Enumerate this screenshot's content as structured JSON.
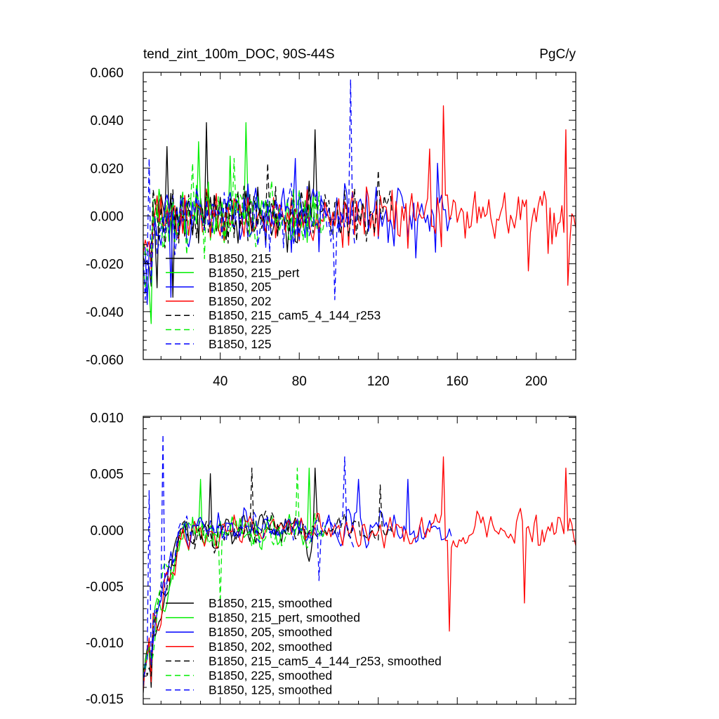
{
  "chart_data": [
    {
      "type": "line",
      "title": "tend_zint_100m_DOC, 90S-44S",
      "units_label": "PgC/y",
      "xlim": [
        1,
        220
      ],
      "ylim": [
        -0.06,
        0.06
      ],
      "x_ticks": [
        40,
        80,
        120,
        160,
        200
      ],
      "x_tick_labels": [
        "40",
        "80",
        "120",
        "160",
        "200"
      ],
      "y_ticks": [
        -0.06,
        -0.04,
        -0.02,
        0.0,
        0.02,
        0.04,
        0.06
      ],
      "y_tick_labels": [
        "-0.060",
        "-0.040",
        "-0.020",
        "0.000",
        "0.020",
        "0.040",
        "0.060"
      ],
      "legend_position": "lower-left",
      "series": [
        {
          "name": "B1850, 215",
          "color": "#000000",
          "dash": "solid",
          "n_years": 90,
          "peaks": [
            [
              33,
              0.039
            ],
            [
              13,
              0.029
            ],
            [
              88,
              0.036
            ],
            [
              8,
              -0.03
            ],
            [
              16,
              -0.034
            ]
          ]
        },
        {
          "name": "B1850, 215_pert",
          "color": "#00ee00",
          "dash": "solid",
          "n_years": 88,
          "peaks": [
            [
              53,
              0.039
            ],
            [
              29,
              0.031
            ],
            [
              5,
              -0.045
            ],
            [
              45,
              0.025
            ]
          ]
        },
        {
          "name": "B1850, 205",
          "color": "#0000ff",
          "dash": "solid",
          "n_years": 157,
          "peaks": [
            [
              3,
              -0.037
            ],
            [
              15,
              -0.034
            ],
            [
              78,
              0.024
            ],
            [
              150,
              0.022
            ]
          ]
        },
        {
          "name": "B1850, 202",
          "color": "#ff0000",
          "dash": "solid",
          "n_years": 220,
          "peaks": [
            [
              153,
              0.046
            ],
            [
              215,
              0.036
            ],
            [
              216,
              -0.029
            ],
            [
              146,
              0.028
            ],
            [
              196,
              -0.023
            ]
          ]
        },
        {
          "name": "B1850, 215_cam5_4_144_r253",
          "color": "#000000",
          "dash": "dashed",
          "n_years": 127,
          "peaks": [
            [
              64,
              0.022
            ],
            [
              120,
              0.019
            ]
          ]
        },
        {
          "name": "B1850, 225",
          "color": "#00ee00",
          "dash": "dashed",
          "n_years": 93,
          "peaks": [
            [
              47,
              0.024
            ],
            [
              26,
              0.022
            ]
          ]
        },
        {
          "name": "B1850, 125",
          "color": "#0000ff",
          "dash": "dashed",
          "n_years": 108,
          "peaks": [
            [
              106,
              0.057
            ],
            [
              98,
              -0.035
            ],
            [
              4,
              0.024
            ],
            [
              2,
              -0.035
            ]
          ]
        }
      ]
    },
    {
      "type": "line",
      "xlim": [
        1,
        220
      ],
      "ylim": [
        -0.0155,
        0.0101
      ],
      "x_ticks": [
        40,
        80,
        120,
        160,
        200
      ],
      "y_ticks": [
        -0.015,
        -0.01,
        -0.005,
        0.0,
        0.005,
        0.01
      ],
      "y_tick_labels": [
        "-0.015",
        "-0.010",
        "-0.005",
        "0.000",
        "0.005",
        "0.010"
      ],
      "legend_position": "lower-left",
      "series": [
        {
          "name": "B1850, 215, smoothed",
          "color": "#000000",
          "dash": "solid",
          "n_years": 90,
          "peaks": [
            [
              5,
              -0.014
            ],
            [
              88,
              0.0055
            ],
            [
              35,
              0.005
            ]
          ]
        },
        {
          "name": "B1850, 215_pert, smoothed",
          "color": "#00ee00",
          "dash": "solid",
          "n_years": 88,
          "peaks": [
            [
              5,
              -0.012
            ],
            [
              85,
              0.0055
            ],
            [
              30,
              0.0045
            ]
          ]
        },
        {
          "name": "B1850, 205, smoothed",
          "color": "#0000ff",
          "dash": "solid",
          "n_years": 157,
          "peaks": [
            [
              5,
              -0.012
            ],
            [
              110,
              0.0045
            ],
            [
              135,
              0.0045
            ]
          ]
        },
        {
          "name": "B1850, 202, smoothed",
          "color": "#ff0000",
          "dash": "solid",
          "n_years": 220,
          "peaks": [
            [
              5,
              -0.0135
            ],
            [
              153,
              0.0065
            ],
            [
              215,
              0.0055
            ],
            [
              156,
              -0.009
            ],
            [
              194,
              -0.0065
            ]
          ]
        },
        {
          "name": "B1850, 215_cam5_4_144_r253, smoothed",
          "color": "#000000",
          "dash": "dashed",
          "n_years": 127,
          "peaks": [
            [
              5,
              -0.013
            ],
            [
              56,
              0.0055
            ],
            [
              121,
              0.004
            ]
          ]
        },
        {
          "name": "B1850, 225, smoothed",
          "color": "#00ee00",
          "dash": "dashed",
          "n_years": 93,
          "peaks": [
            [
              5,
              -0.012
            ],
            [
              79,
              0.0055
            ],
            [
              40,
              -0.0065
            ]
          ]
        },
        {
          "name": "B1850, 125, smoothed",
          "color": "#0000ff",
          "dash": "dashed",
          "n_years": 108,
          "peaks": [
            [
              4,
              0.0035
            ],
            [
              11,
              0.0085
            ],
            [
              103,
              0.0065
            ],
            [
              5,
              -0.012
            ],
            [
              90,
              -0.0045
            ]
          ]
        }
      ]
    }
  ]
}
